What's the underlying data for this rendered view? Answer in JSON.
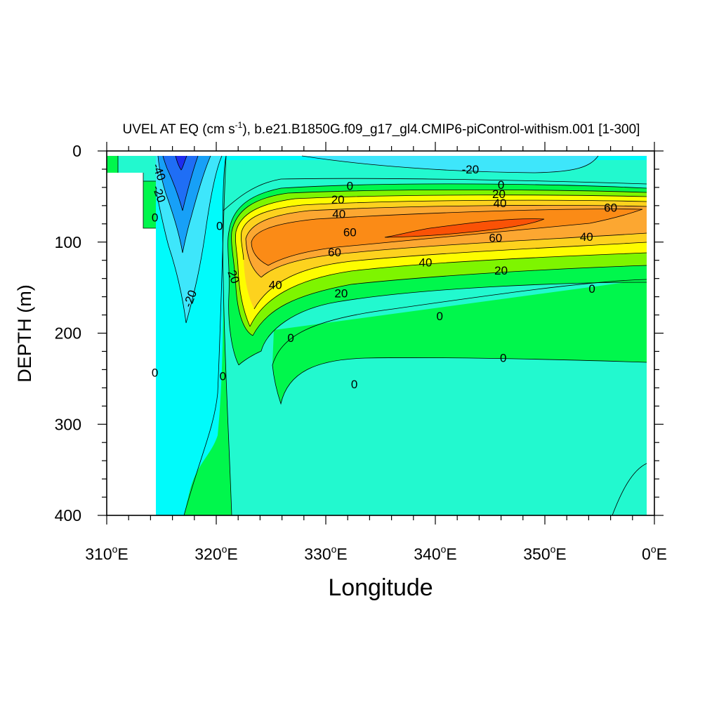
{
  "chart_data": {
    "type": "contour",
    "title_prefix": "UVEL AT EQ (cm s",
    "title_exp": "-1",
    "title_suffix": "), b.e21.B1850G.f09_g17_gl4.CMIP6-piControl-withism.001 [1-300]",
    "xlabel": "Longitude",
    "ylabel": "DEPTH (m)",
    "xlim": [
      310,
      360
    ],
    "ylim": [
      0,
      400
    ],
    "y_inverted": true,
    "x_ticks": [
      {
        "value": 310,
        "num": "310",
        "sup": "o",
        "unit": "E"
      },
      {
        "value": 320,
        "num": "320",
        "sup": "o",
        "unit": "E"
      },
      {
        "value": 330,
        "num": "330",
        "sup": "o",
        "unit": "E"
      },
      {
        "value": 340,
        "num": "340",
        "sup": "o",
        "unit": "E"
      },
      {
        "value": 350,
        "num": "350",
        "sup": "o",
        "unit": "E"
      },
      {
        "value": 360,
        "num": "0",
        "sup": "o",
        "unit": "E"
      }
    ],
    "y_ticks": [
      {
        "value": 0,
        "label": "0"
      },
      {
        "value": 100,
        "label": "100"
      },
      {
        "value": 200,
        "label": "200"
      },
      {
        "value": 300,
        "label": "300"
      },
      {
        "value": 400,
        "label": "400"
      }
    ],
    "contour_levels": [
      -50,
      -40,
      -30,
      -20,
      -10,
      0,
      10,
      20,
      30,
      40,
      50,
      60,
      70
    ],
    "fill_colors": {
      "below_-40": "#1d2cf0",
      "-40_-30": "#1f6ef5",
      "-30_-20": "#17a0f7",
      "-20_-10": "#3ee6fb",
      "-10_0": "#00fbfb",
      "0_10": "#22f9cf",
      "10_20": "#00f74c",
      "20_30": "#7ef500",
      "30_40": "#fdfd00",
      "40_50": "#fdd21e",
      "50_60": "#fca731",
      "60_70": "#fb8b16",
      "above_70": "#fa5206"
    },
    "contour_labels": [
      {
        "text": "-20",
        "lon": 343.2,
        "depth": 20
      },
      {
        "text": "0",
        "lon": 332.2,
        "depth": 38
      },
      {
        "text": "0",
        "lon": 346.0,
        "depth": 37
      },
      {
        "text": "20",
        "lon": 331.1,
        "depth": 53
      },
      {
        "text": "20",
        "lon": 345.8,
        "depth": 47
      },
      {
        "text": "40",
        "lon": 331.2,
        "depth": 69
      },
      {
        "text": "40",
        "lon": 345.9,
        "depth": 57
      },
      {
        "text": "60",
        "lon": 332.2,
        "depth": 89
      },
      {
        "text": "60",
        "lon": 356.0,
        "depth": 62
      },
      {
        "text": "60",
        "lon": 345.5,
        "depth": 95
      },
      {
        "text": "60",
        "lon": 330.8,
        "depth": 111
      },
      {
        "text": "40",
        "lon": 353.8,
        "depth": 94
      },
      {
        "text": "40",
        "lon": 339.1,
        "depth": 122
      },
      {
        "text": "40",
        "lon": 325.4,
        "depth": 147
      },
      {
        "text": "20",
        "lon": 346.0,
        "depth": 131
      },
      {
        "text": "20",
        "lon": 331.4,
        "depth": 156
      },
      {
        "text": "20",
        "lon": 321.6,
        "depth": 138,
        "rotate": 70
      },
      {
        "text": "0",
        "lon": 320.3,
        "depth": 82
      },
      {
        "text": "0",
        "lon": 354.3,
        "depth": 151
      },
      {
        "text": "0",
        "lon": 340.4,
        "depth": 181
      },
      {
        "text": "0",
        "lon": 326.8,
        "depth": 205
      },
      {
        "text": "0",
        "lon": 346.2,
        "depth": 227
      },
      {
        "text": "0",
        "lon": 332.6,
        "depth": 256
      },
      {
        "text": "0",
        "lon": 320.6,
        "depth": 247
      },
      {
        "text": "0",
        "lon": 314.4,
        "depth": 243
      },
      {
        "text": "0",
        "lon": 314.4,
        "depth": 73
      },
      {
        "text": "-40",
        "lon": 314.8,
        "depth": 23,
        "rotate": 70
      },
      {
        "text": "-20",
        "lon": 314.8,
        "depth": 47,
        "rotate": 70
      },
      {
        "text": "-20",
        "lon": 317.6,
        "depth": 162,
        "rotate": -70
      }
    ]
  }
}
